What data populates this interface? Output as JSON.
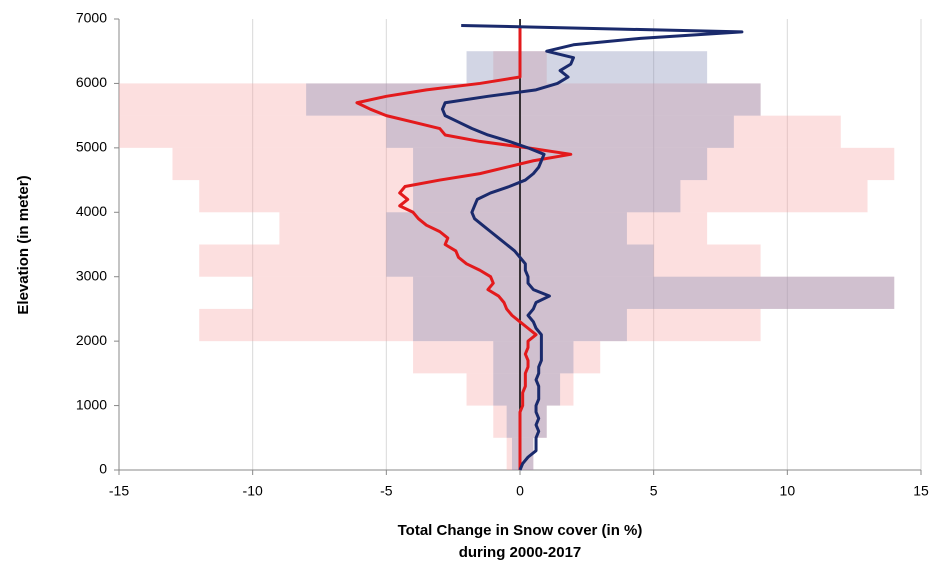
{
  "chart_data": {
    "type": "line",
    "xlabel": "Total Change in Snow cover (in %)",
    "xlabel2": "during 2000-2017",
    "ylabel": "Elevation (in meter)",
    "xlim": [
      -15,
      15
    ],
    "xticks": [
      -15,
      -10,
      -5,
      0,
      5,
      10,
      15
    ],
    "ylim": [
      0,
      7000
    ],
    "yticks": [
      0,
      1000,
      2000,
      3000,
      4000,
      5000,
      6000,
      7000
    ],
    "grid": true,
    "elevation": [
      0,
      100,
      200,
      300,
      400,
      500,
      600,
      700,
      800,
      900,
      1000,
      1100,
      1200,
      1300,
      1400,
      1500,
      1600,
      1700,
      1800,
      1900,
      2000,
      2100,
      2200,
      2300,
      2400,
      2500,
      2600,
      2700,
      2800,
      2900,
      3000,
      3100,
      3200,
      3300,
      3400,
      3500,
      3600,
      3700,
      3800,
      3900,
      4000,
      4100,
      4200,
      4300,
      4400,
      4500,
      4600,
      4700,
      4800,
      4900,
      5000,
      5100,
      5200,
      5300,
      5400,
      5500,
      5600,
      5700,
      5800,
      5900,
      6000,
      6100,
      6200,
      6300,
      6400,
      6500,
      6600,
      6700,
      6800,
      6900
    ],
    "band_edges": [
      0,
      500,
      1000,
      1500,
      2000,
      2500,
      3000,
      3500,
      4000,
      4500,
      5000,
      5500,
      6000,
      6500,
      7000
    ],
    "series": [
      {
        "color": "#e31a1c",
        "band_color": "#f5a3a3",
        "values": [
          0,
          0,
          0,
          0,
          0,
          0,
          0,
          0,
          0,
          0,
          0.1,
          0.1,
          0.1,
          0.2,
          0.2,
          0.2,
          0.3,
          0.3,
          0.2,
          0.3,
          0.3,
          0.6,
          0.3,
          0,
          -0.3,
          -0.5,
          -0.6,
          -0.8,
          -1.2,
          -1.0,
          -1.1,
          -1.5,
          -2.0,
          -2.3,
          -2.4,
          -2.8,
          -2.7,
          -3.0,
          -3.5,
          -3.8,
          -4.0,
          -4.5,
          -4.2,
          -4.5,
          -4.3,
          -3.0,
          -1.5,
          -0.5,
          0.5,
          1.9,
          0.3,
          -1.5,
          -2.8,
          -3.0,
          -4.0,
          -5.0,
          -5.6,
          -6.1,
          -5.0,
          -3.5,
          -1.5,
          0,
          0,
          0,
          0,
          0,
          0,
          0,
          0,
          0
        ],
        "band_low": [
          -0.5,
          -1,
          -2,
          -4,
          -12,
          -10,
          -12,
          -9,
          -12,
          -13,
          -15,
          -15,
          -1,
          0
        ],
        "band_high": [
          0.5,
          1,
          2,
          3,
          9,
          14,
          9,
          7,
          13,
          14,
          12,
          9,
          1,
          0
        ]
      },
      {
        "color": "#1a2a6c",
        "band_color": "#7d87b3",
        "values": [
          0,
          0.1,
          0.3,
          0.6,
          0.6,
          0.6,
          0.7,
          0.6,
          0.7,
          0.6,
          0.6,
          0.7,
          0.7,
          0.7,
          0.6,
          0.7,
          0.7,
          0.8,
          0.8,
          0.8,
          0.8,
          0.8,
          0.6,
          0.5,
          0.3,
          0.5,
          0.6,
          1.1,
          0.5,
          0.3,
          0.3,
          0.2,
          0.2,
          0,
          -0.2,
          -0.5,
          -0.8,
          -1.1,
          -1.4,
          -1.7,
          -1.8,
          -1.7,
          -1.6,
          -1.1,
          -0.4,
          0.2,
          0.5,
          0.7,
          0.8,
          0.9,
          0.3,
          -0.4,
          -1.2,
          -1.8,
          -2.3,
          -2.8,
          -2.9,
          -2.8,
          -1.2,
          0.6,
          1.4,
          1.8,
          1.5,
          1.9,
          2.0,
          1.0,
          2.0,
          4.5,
          8.3,
          -2.2
        ],
        "band_low": [
          -0.3,
          -0.5,
          -1,
          -1,
          -4,
          -4,
          -5,
          -5,
          -4,
          -4,
          -5,
          -8,
          -2,
          0
        ],
        "band_high": [
          0.5,
          1,
          1.5,
          2,
          4,
          14,
          5,
          4,
          6,
          7,
          8,
          9,
          7,
          0
        ]
      }
    ]
  }
}
